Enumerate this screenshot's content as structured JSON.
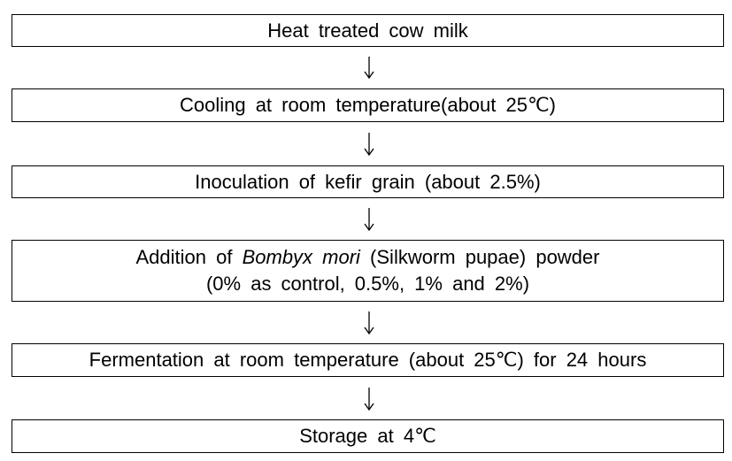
{
  "steps": [
    "Heat treated cow milk",
    "Cooling at room temperature(about 25℃)",
    "Inoculation of kefir grain (about 2.5%)",
    {
      "before": "Addition of ",
      "italic": "Bombyx mori",
      "after": " (Silkworm pupae) powder",
      "second_line": "(0% as control, 0.5%, 1% and 2%)"
    },
    "Fermentation at room temperature (about 25℃) for 24 hours",
    "Storage at 4℃"
  ]
}
